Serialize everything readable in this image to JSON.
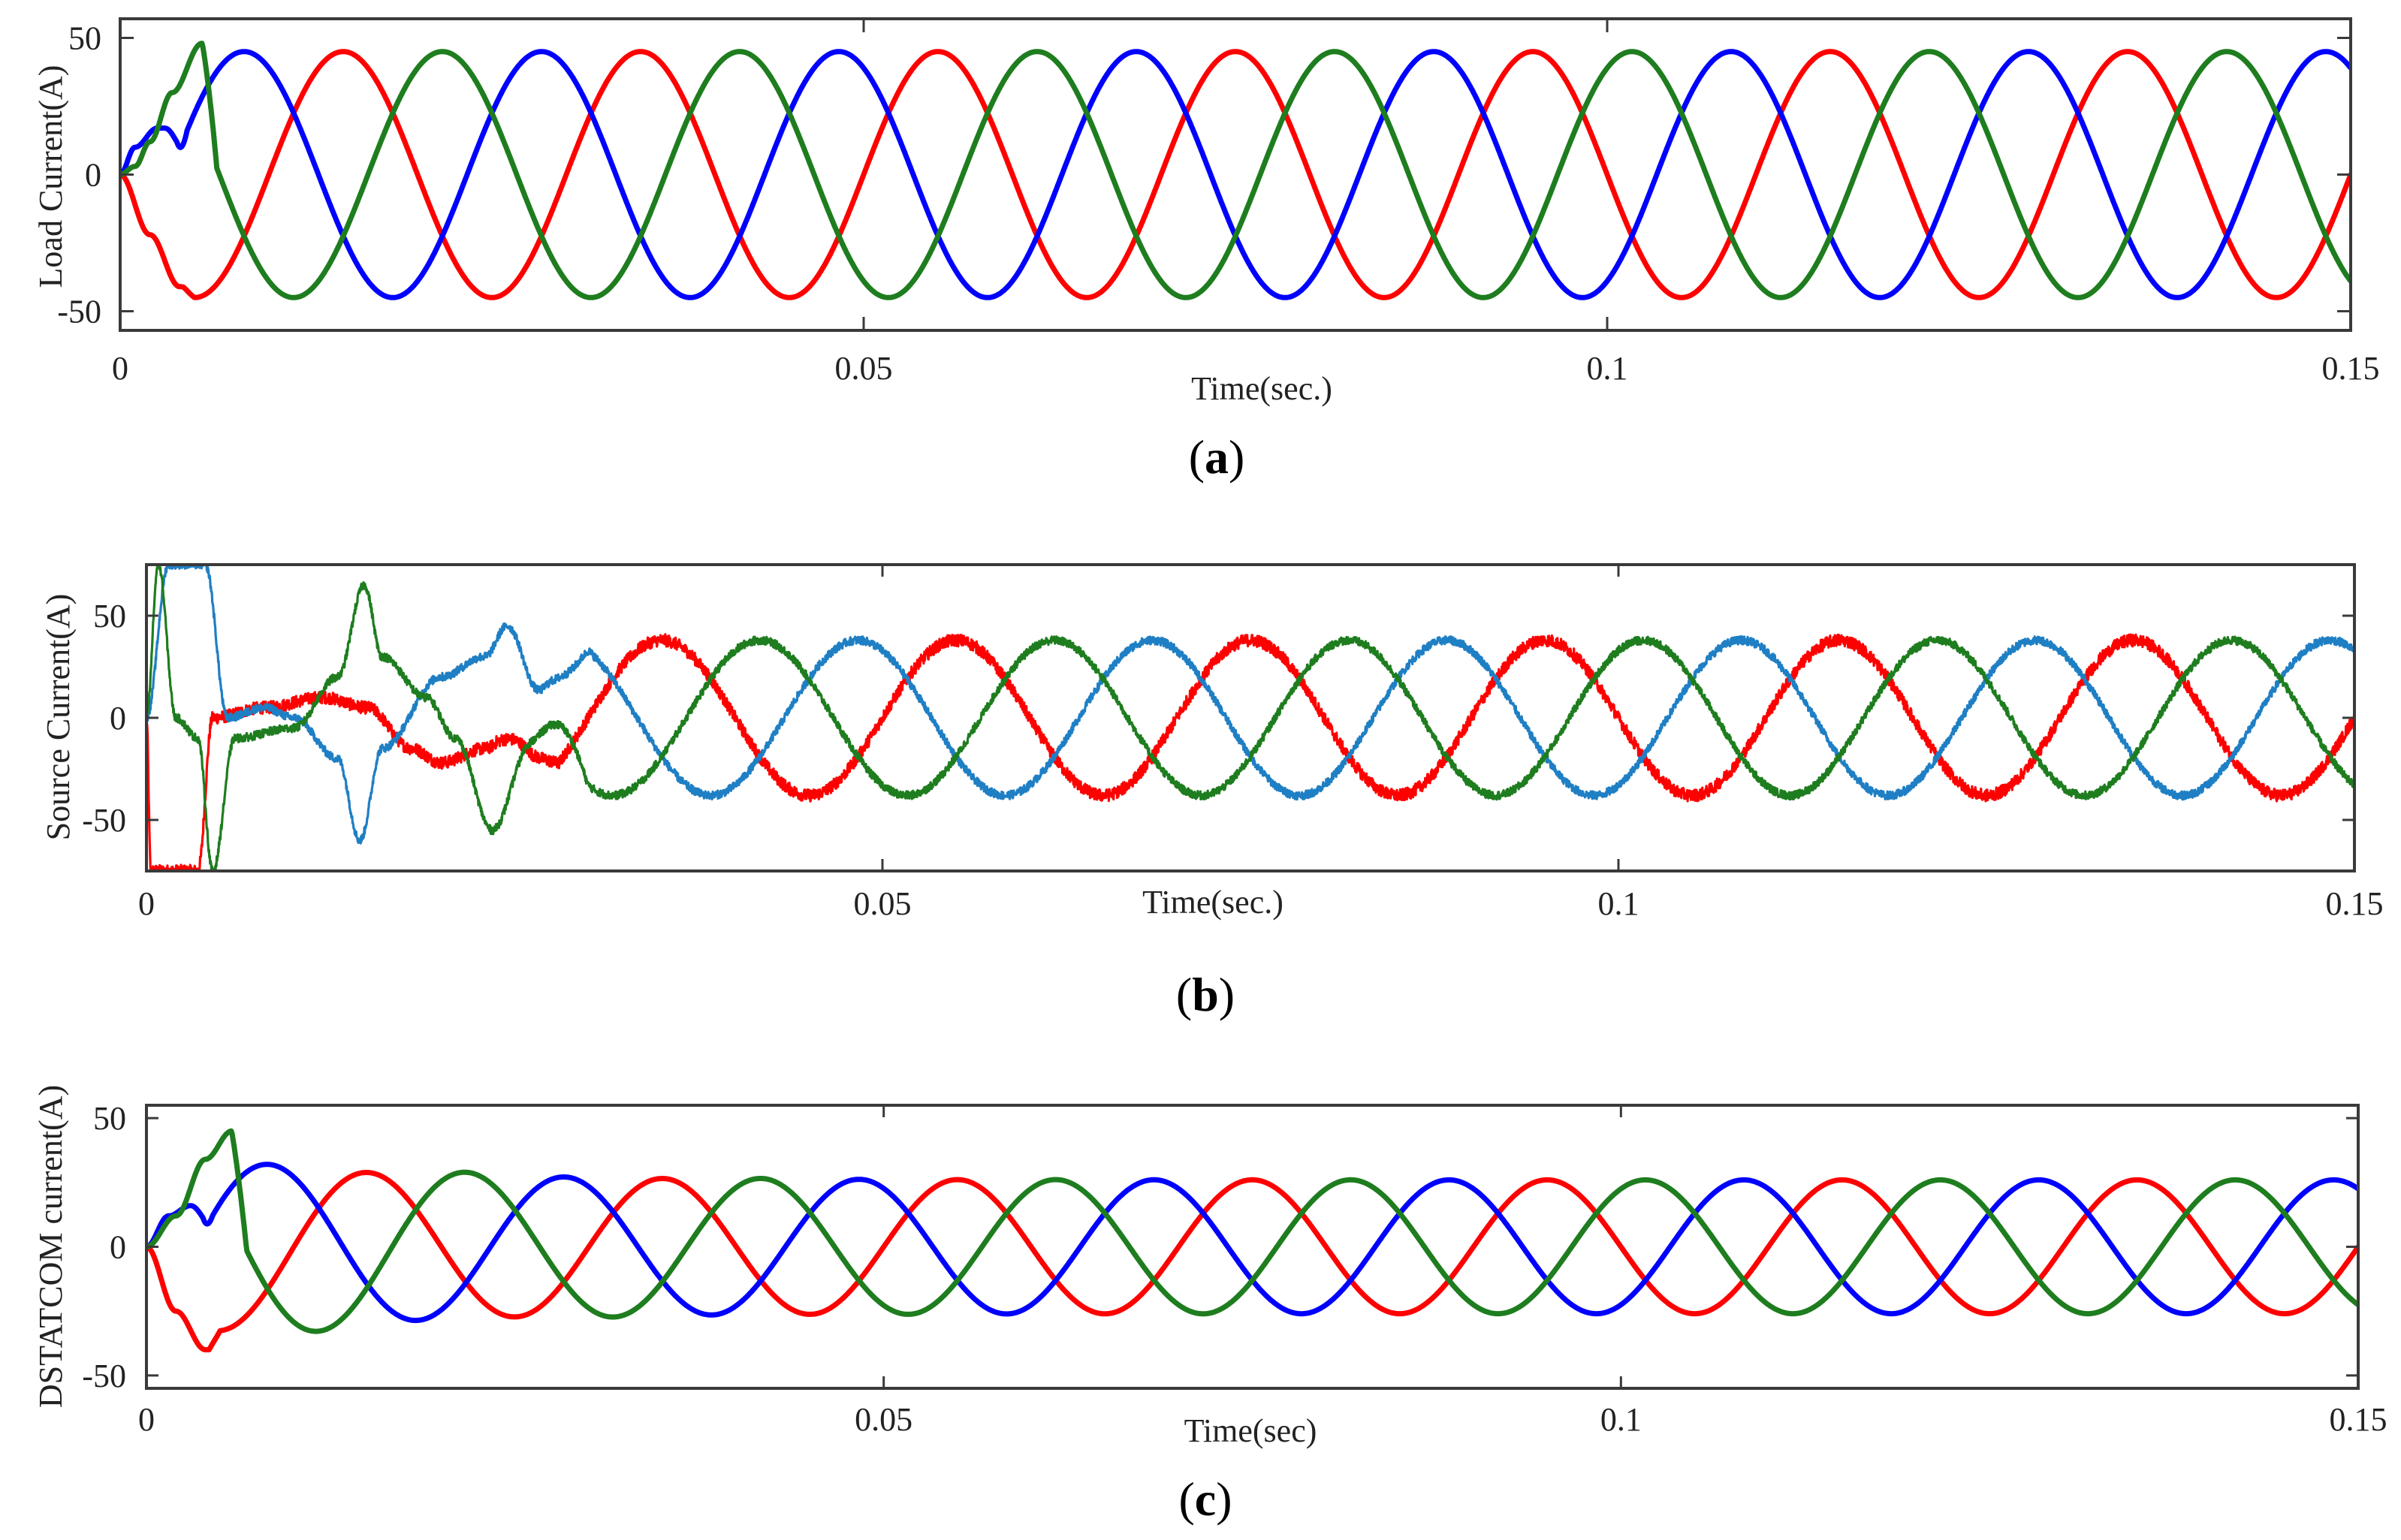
{
  "chart_data": [
    {
      "id": "a",
      "type": "line",
      "caption": "a",
      "xlabel": "Time(sec.)",
      "ylabel": "Load Current(A)",
      "xlim": [
        0,
        0.15
      ],
      "ylim": [
        -57,
        57
      ],
      "xticks": [
        0,
        0.05,
        0.1,
        0.15
      ],
      "xtick_labels": [
        "0",
        "0.05",
        "0.1",
        "0.15"
      ],
      "yticks": [
        -50,
        0,
        50
      ],
      "ytick_labels": [
        "-50",
        "0",
        "50"
      ],
      "grid": false,
      "frequency_hz": 50,
      "colors": [
        "#ff0000",
        "#0000ff",
        "#1e7d1e"
      ],
      "series": [
        {
          "color": "#ff0000",
          "amplitude": 45,
          "phase_deg": 0,
          "transient": [
            [
              0,
              0
            ],
            [
              0.002,
              -22
            ],
            [
              0.004,
              -41
            ],
            [
              0.005,
              -42
            ]
          ]
        },
        {
          "color": "#0000ff",
          "amplitude": 45,
          "phase_deg": 120,
          "transient": [
            [
              0,
              0
            ],
            [
              0.001,
              10
            ],
            [
              0.0025,
              17
            ],
            [
              0.003,
              17
            ],
            [
              0.0045,
              8
            ]
          ]
        },
        {
          "color": "#1e7d1e",
          "amplitude": 45,
          "phase_deg": -120,
          "transient": [
            [
              0,
              0
            ],
            [
              0.001,
              3
            ],
            [
              0.002,
              12
            ],
            [
              0.0035,
              30
            ],
            [
              0.0055,
              48
            ],
            [
              0.0065,
              48
            ]
          ]
        }
      ]
    },
    {
      "id": "b",
      "type": "line",
      "caption": "b",
      "xlabel": "Time(sec.)",
      "ylabel": "Source Current(A)",
      "xlim": [
        0,
        0.15
      ],
      "ylim": [
        -75,
        75
      ],
      "xticks": [
        0,
        0.05,
        0.1,
        0.15
      ],
      "xtick_labels": [
        "0",
        "0.05",
        "0.1",
        "0.15"
      ],
      "yticks": [
        -50,
        0,
        50
      ],
      "ytick_labels": [
        "-50",
        "0",
        "50"
      ],
      "grid": false,
      "frequency_hz": 50,
      "colors": [
        "#ff0000",
        "#1f7fc4",
        "#1e7d1e"
      ],
      "series": [
        {
          "color": "#ff0000",
          "amplitude": 38,
          "phase_deg": 0,
          "noise": 3,
          "settle_time": 0.028,
          "transient": [
            [
              0,
              0
            ],
            [
              0.0003,
              -75
            ],
            [
              0.0035,
              -75
            ],
            [
              0.0045,
              0
            ],
            [
              0.008,
              5
            ],
            [
              0.012,
              10
            ],
            [
              0.015,
              5
            ],
            [
              0.018,
              -15
            ],
            [
              0.02,
              -22
            ],
            [
              0.023,
              -15
            ],
            [
              0.026,
              5
            ],
            [
              0.028,
              22
            ]
          ]
        },
        {
          "color": "#1f7fc4",
          "amplitude": 38,
          "phase_deg": 120,
          "noise": 2,
          "settle_time": 0.03,
          "transient": [
            [
              0,
              0
            ],
            [
              0.0015,
              75
            ],
            [
              0.004,
              75
            ],
            [
              0.0055,
              0
            ],
            [
              0.008,
              5
            ],
            [
              0.01,
              0
            ],
            [
              0.013,
              -20
            ],
            [
              0.0145,
              -60
            ],
            [
              0.016,
              -15
            ],
            [
              0.02,
              20
            ],
            [
              0.023,
              30
            ],
            [
              0.0245,
              45
            ],
            [
              0.027,
              5
            ],
            [
              0.03,
              -28
            ]
          ]
        },
        {
          "color": "#1e7d1e",
          "amplitude": 38,
          "phase_deg": -120,
          "noise": 2,
          "settle_time": 0.03,
          "transient": [
            [
              0,
              0
            ],
            [
              0.0008,
              75
            ],
            [
              0.002,
              0
            ],
            [
              0.0035,
              -10
            ],
            [
              0.0045,
              -75
            ],
            [
              0.006,
              -10
            ],
            [
              0.01,
              -5
            ],
            [
              0.013,
              20
            ],
            [
              0.0148,
              65
            ],
            [
              0.016,
              30
            ],
            [
              0.019,
              10
            ],
            [
              0.021,
              -10
            ],
            [
              0.0235,
              -55
            ],
            [
              0.026,
              -15
            ],
            [
              0.03,
              38
            ]
          ]
        }
      ]
    },
    {
      "id": "c",
      "type": "line",
      "caption": "c",
      "xlabel": "Time(sec)",
      "ylabel": "DSTATCOM current(A)",
      "xlim": [
        0,
        0.15
      ],
      "ylim": [
        -55,
        55
      ],
      "xticks": [
        0,
        0.05,
        0.1,
        0.15
      ],
      "xtick_labels": [
        "0",
        "0.05",
        "0.1",
        "0.15"
      ],
      "yticks": [
        -50,
        0,
        50
      ],
      "ytick_labels": [
        "-50",
        "0",
        "50"
      ],
      "grid": false,
      "frequency_hz": 50,
      "colors": [
        "#ff0000",
        "#0000ff",
        "#1e7d1e"
      ],
      "series": [
        {
          "color": "#ff0000",
          "amplitude": 26,
          "phase_deg": 0,
          "decay_from": 36,
          "decay_tau": 0.012,
          "transient": [
            [
              0,
              0
            ],
            [
              0.002,
              -25
            ],
            [
              0.004,
              -40
            ],
            [
              0.005,
              -40
            ]
          ]
        },
        {
          "color": "#0000ff",
          "amplitude": 26,
          "phase_deg": 120,
          "decay_from": 38,
          "decay_tau": 0.012,
          "transient": [
            [
              0,
              0
            ],
            [
              0.0015,
              12
            ],
            [
              0.003,
              16
            ],
            [
              0.0045,
              8
            ]
          ]
        },
        {
          "color": "#1e7d1e",
          "amplitude": 26,
          "phase_deg": -120,
          "decay_from": 44,
          "decay_tau": 0.012,
          "transient": [
            [
              0,
              0
            ],
            [
              0.002,
              12
            ],
            [
              0.004,
              34
            ],
            [
              0.0058,
              45
            ],
            [
              0.0068,
              44
            ]
          ]
        }
      ]
    }
  ]
}
